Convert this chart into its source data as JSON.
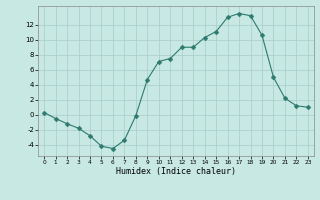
{
  "x": [
    0,
    1,
    2,
    3,
    4,
    5,
    6,
    7,
    8,
    9,
    10,
    11,
    12,
    13,
    14,
    15,
    16,
    17,
    18,
    19,
    20,
    21,
    22,
    23
  ],
  "y": [
    0.3,
    -0.5,
    -1.2,
    -1.8,
    -2.8,
    -4.2,
    -4.5,
    -3.4,
    -0.1,
    4.7,
    7.1,
    7.5,
    9.0,
    9.0,
    10.3,
    11.1,
    13.0,
    13.5,
    13.2,
    10.6,
    5.0,
    2.2,
    1.2,
    1.0
  ],
  "line_color": "#2d7a6e",
  "marker": "D",
  "marker_size": 2.5,
  "bg_color": "#c8e8e4",
  "grid_color": "#a8ccc8",
  "xlabel": "Humidex (Indice chaleur)",
  "ylim": [
    -5.5,
    14.5
  ],
  "yticks": [
    -4,
    -2,
    0,
    2,
    4,
    6,
    8,
    10,
    12
  ],
  "xlim": [
    -0.5,
    23.5
  ],
  "xticks": [
    0,
    1,
    2,
    3,
    4,
    5,
    6,
    7,
    8,
    9,
    10,
    11,
    12,
    13,
    14,
    15,
    16,
    17,
    18,
    19,
    20,
    21,
    22,
    23
  ]
}
